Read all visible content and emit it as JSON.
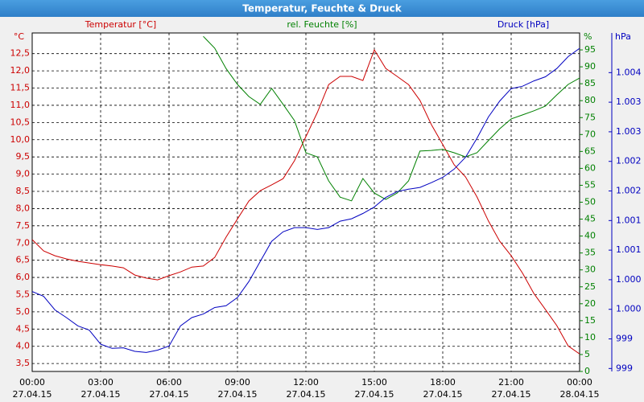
{
  "chart_data": {
    "type": "line",
    "title": "Temperatur, Feuchte & Druck",
    "x": [
      0,
      0.5,
      1,
      1.5,
      2,
      2.5,
      3,
      3.5,
      4,
      4.5,
      5,
      5.5,
      6,
      6.5,
      7,
      7.5,
      8,
      8.5,
      9,
      9.5,
      10,
      10.5,
      11,
      11.5,
      12,
      12.5,
      13,
      13.5,
      14,
      14.5,
      15,
      15.5,
      16,
      16.5,
      17,
      17.5,
      18,
      18.5,
      19,
      19.5,
      20,
      20.5,
      21,
      21.5,
      22,
      22.5,
      23,
      23.5,
      24
    ],
    "xlim": [
      0,
      24
    ],
    "xticks": [
      {
        "value": 0,
        "label": "00:00"
      },
      {
        "value": 3,
        "label": "03:00"
      },
      {
        "value": 6,
        "label": "06:00"
      },
      {
        "value": 9,
        "label": "09:00"
      },
      {
        "value": 12,
        "label": "12:00"
      },
      {
        "value": 15,
        "label": "15:00"
      },
      {
        "value": 18,
        "label": "18:00"
      },
      {
        "value": 21,
        "label": "21:00"
      },
      {
        "value": 24,
        "label": "00:00"
      }
    ],
    "xtick_dates": [
      "27.04.15",
      "27.04.15",
      "27.04.15",
      "27.04.15",
      "27.04.15",
      "27.04.15",
      "27.04.15",
      "27.04.15",
      "28.04.15"
    ],
    "y_unit": "°C",
    "y2_unit": "%",
    "y3_unit": "hPa",
    "ylim": [
      3.27,
      13.1
    ],
    "yticks": [
      {
        "value": 3.5,
        "label": "3,5"
      },
      {
        "value": 4,
        "label": "4,0"
      },
      {
        "value": 4.5,
        "label": "4,5"
      },
      {
        "value": 5,
        "label": "5,0"
      },
      {
        "value": 5.5,
        "label": "5,5"
      },
      {
        "value": 6,
        "label": "6,0"
      },
      {
        "value": 6.5,
        "label": "6,5"
      },
      {
        "value": 7,
        "label": "7,0"
      },
      {
        "value": 7.5,
        "label": "7,5"
      },
      {
        "value": 8,
        "label": "8,0"
      },
      {
        "value": 8.5,
        "label": "8,5"
      },
      {
        "value": 9,
        "label": "9,0"
      },
      {
        "value": 9.5,
        "label": "9,5"
      },
      {
        "value": 10,
        "label": "10,0"
      },
      {
        "value": 10.5,
        "label": "10,5"
      },
      {
        "value": 11,
        "label": "11,0"
      },
      {
        "value": 11.5,
        "label": "11,5"
      },
      {
        "value": 12,
        "label": "12,0"
      },
      {
        "value": 12.5,
        "label": "12,5"
      }
    ],
    "y2lim": [
      0,
      100
    ],
    "y2ticks": [
      0,
      5,
      10,
      15,
      20,
      25,
      30,
      35,
      40,
      45,
      50,
      55,
      60,
      65,
      70,
      75,
      80,
      85,
      90,
      95
    ],
    "y3lim": [
      998.75,
      1004.47
    ],
    "y3ticks": [
      {
        "value": 998.8,
        "label": "999"
      },
      {
        "value": 999.3,
        "label": "999"
      },
      {
        "value": 999.8,
        "label": "1.000"
      },
      {
        "value": 1000.3,
        "label": "1.000"
      },
      {
        "value": 1000.8,
        "label": "1.001"
      },
      {
        "value": 1001.3,
        "label": "1.001"
      },
      {
        "value": 1001.8,
        "label": "1.002"
      },
      {
        "value": 1002.3,
        "label": "1.002"
      },
      {
        "value": 1002.8,
        "label": "1.003"
      },
      {
        "value": 1003.3,
        "label": "1.003"
      },
      {
        "value": 1003.8,
        "label": "1.004"
      }
    ],
    "grid": true,
    "series": [
      {
        "name": "Temperatur [°C]",
        "color": "#cc0000",
        "axis": "y",
        "values": [
          7.1,
          6.77,
          6.63,
          6.54,
          6.47,
          6.42,
          6.37,
          6.33,
          6.28,
          6.07,
          5.98,
          5.93,
          6.05,
          6.16,
          6.3,
          6.33,
          6.58,
          7.17,
          7.7,
          8.22,
          8.52,
          8.69,
          8.87,
          9.39,
          10.09,
          10.79,
          11.6,
          11.84,
          11.84,
          11.72,
          12.61,
          12.07,
          11.84,
          11.6,
          11.14,
          10.44,
          9.86,
          9.27,
          8.92,
          8.34,
          7.64,
          7.05,
          6.63,
          6.12,
          5.53,
          5.07,
          4.6,
          4.01,
          3.78
        ]
      },
      {
        "name": "rel. Feuchte [%]",
        "color": "#008000",
        "axis": "y2",
        "values": [
          null,
          null,
          null,
          null,
          null,
          null,
          null,
          null,
          null,
          null,
          null,
          null,
          null,
          null,
          null,
          99,
          95.5,
          89.5,
          84.8,
          81.2,
          78.9,
          83.6,
          78.9,
          74.1,
          64.6,
          63.4,
          56.3,
          51.5,
          50.4,
          57,
          52.7,
          50.8,
          52.7,
          56.3,
          65.1,
          65.3,
          65.6,
          64.6,
          63.4,
          64.6,
          68.2,
          71.7,
          74.6,
          75.8,
          77,
          78.4,
          81.7,
          84.8,
          86.7
        ]
      },
      {
        "name": "Druck [hPa]",
        "color": "#0000c0",
        "axis": "y3",
        "values": [
          1000.1,
          1000.02,
          999.79,
          999.66,
          999.52,
          999.45,
          999.21,
          999.14,
          999.15,
          999.09,
          999.07,
          999.11,
          999.18,
          999.52,
          999.66,
          999.72,
          999.83,
          999.86,
          1000.0,
          1000.27,
          1000.61,
          1000.95,
          1001.11,
          1001.18,
          1001.18,
          1001.15,
          1001.18,
          1001.29,
          1001.33,
          1001.42,
          1001.53,
          1001.69,
          1001.79,
          1001.83,
          1001.86,
          1001.94,
          1002.03,
          1002.17,
          1002.37,
          1002.69,
          1003.05,
          1003.32,
          1003.53,
          1003.57,
          1003.66,
          1003.73,
          1003.87,
          1004.07,
          1004.21
        ]
      }
    ]
  }
}
